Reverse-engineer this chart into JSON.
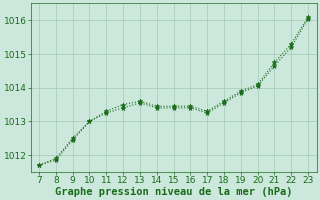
{
  "x": [
    7,
    8,
    9,
    10,
    11,
    12,
    13,
    14,
    15,
    16,
    17,
    18,
    19,
    20,
    21,
    22,
    23
  ],
  "upper": [
    1011.7,
    1011.9,
    1012.5,
    1013.0,
    1013.3,
    1013.5,
    1013.6,
    1013.45,
    1013.45,
    1013.45,
    1013.3,
    1013.6,
    1013.9,
    1014.1,
    1014.75,
    1015.3,
    1016.1
  ],
  "lower": [
    1011.7,
    1011.85,
    1012.45,
    1013.0,
    1013.25,
    1013.4,
    1013.55,
    1013.4,
    1013.4,
    1013.4,
    1013.25,
    1013.55,
    1013.85,
    1014.05,
    1014.65,
    1015.2,
    1016.05
  ],
  "ylim": [
    1011.5,
    1016.5
  ],
  "xlim": [
    6.5,
    23.5
  ],
  "yticks": [
    1012,
    1013,
    1014,
    1015,
    1016
  ],
  "xticks": [
    7,
    8,
    9,
    10,
    11,
    12,
    13,
    14,
    15,
    16,
    17,
    18,
    19,
    20,
    21,
    22,
    23
  ],
  "line_color": "#1a6b1a",
  "bg_color": "#cce8dc",
  "grid_color": "#aacfbf",
  "xlabel": "Graphe pression niveau de la mer (hPa)",
  "xlabel_color": "#1a6b1a",
  "tick_color": "#1a6b1a",
  "label_fontsize": 7.5,
  "tick_fontsize": 6.5
}
